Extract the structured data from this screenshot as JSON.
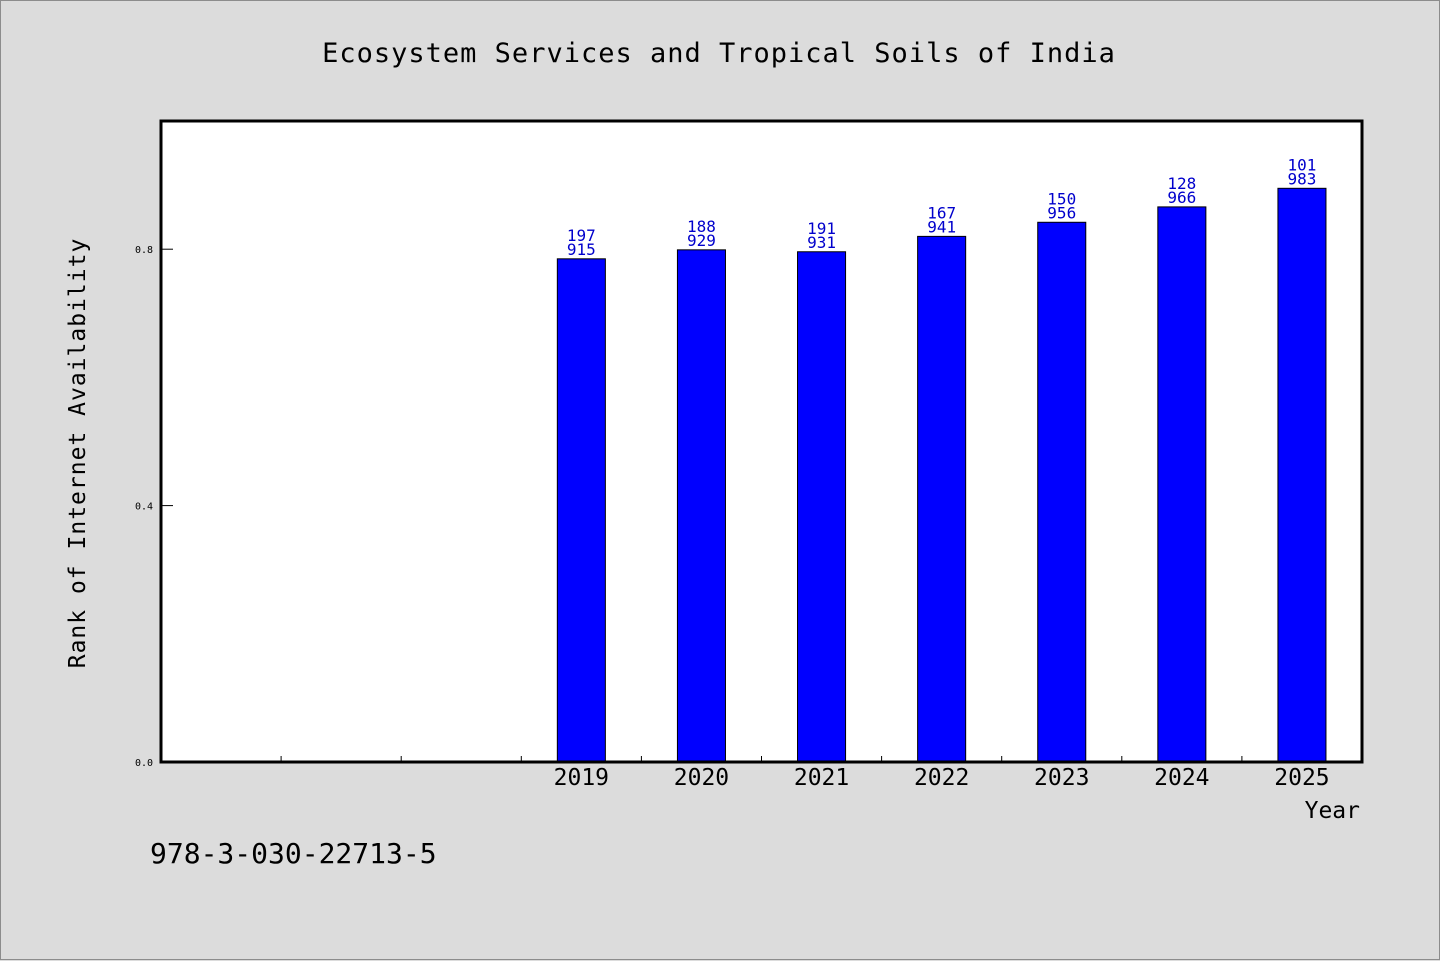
{
  "chart_data": {
    "type": "bar",
    "title": "Ecosystem Services and Tropical Soils of India",
    "xlabel": "Year",
    "ylabel": "Rank of Internet Availability",
    "ylim": [
      0,
      1.0
    ],
    "yticks": [
      "0.0",
      "0.4",
      "0.8"
    ],
    "ytick_values": [
      0.0,
      0.4,
      0.8
    ],
    "category_slots": 10,
    "categories": [
      "2019",
      "2020",
      "2021",
      "2022",
      "2023",
      "2024",
      "2025"
    ],
    "values": [
      0.785,
      0.799,
      0.796,
      0.82,
      0.842,
      0.866,
      0.895
    ],
    "data_labels": [
      [
        "197",
        "915"
      ],
      [
        "188",
        "929"
      ],
      [
        "191",
        "931"
      ],
      [
        "167",
        "941"
      ],
      [
        "150",
        "956"
      ],
      [
        "128",
        "966"
      ],
      [
        "101",
        "983"
      ]
    ],
    "bar_color": "#0000ff",
    "label_color": "#0000cc",
    "grid": false
  },
  "footnote": "978-3-030-22713-5"
}
